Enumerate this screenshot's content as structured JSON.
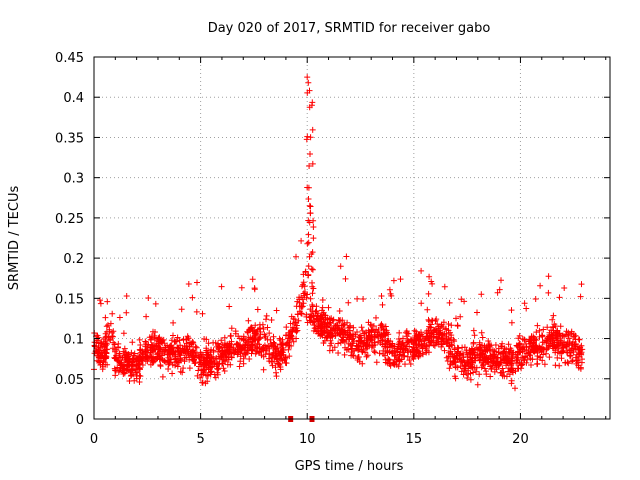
{
  "chart_data": {
    "type": "scatter",
    "title": "Day 020 of 2017, SRMTID for receiver gabo",
    "xlabel": "GPS time / hours",
    "ylabel": "SRMTID / TECUs",
    "xlim": [
      0,
      24.2
    ],
    "ylim": [
      0,
      0.45
    ],
    "xticks": [
      0,
      5,
      10,
      15,
      20
    ],
    "xtick_labels": [
      "0",
      "5",
      "10",
      "15",
      "20"
    ],
    "yticks": [
      0,
      0.05,
      0.1,
      0.15,
      0.2,
      0.25,
      0.3,
      0.35,
      0.4,
      0.45
    ],
    "ytick_labels": [
      "0",
      "0.05",
      "0.1",
      "0.15",
      "0.2",
      "0.25",
      "0.3",
      "0.35",
      "0.4",
      "0.45"
    ],
    "grid": true,
    "marker": "plus",
    "color": "#ff0000",
    "x_range_data": [
      0,
      22.9
    ],
    "baseline_markers_x": [
      9.2,
      10.2
    ],
    "series": [
      {
        "name": "SRMTID",
        "description": "Dense scatter of ~2300 samples; values plotted as typical level per hour",
        "x": [
          0,
          0.5,
          0.8,
          1,
          1.5,
          2,
          2.5,
          3,
          3.5,
          4,
          4.5,
          5,
          5.5,
          6,
          6.5,
          7,
          7.5,
          8,
          8.5,
          9,
          9.5,
          9.9,
          10,
          10.1,
          10.3,
          10.6,
          11,
          11.5,
          12,
          12.5,
          13,
          13.5,
          14,
          14.5,
          15,
          15.5,
          16,
          16.5,
          17,
          17.5,
          18,
          18.5,
          19,
          19.5,
          20,
          20.5,
          21,
          21.5,
          22,
          22.5,
          22.9
        ],
        "y": [
          0.09,
          0.08,
          0.12,
          0.07,
          0.07,
          0.07,
          0.08,
          0.09,
          0.08,
          0.08,
          0.09,
          0.07,
          0.07,
          0.08,
          0.09,
          0.09,
          0.1,
          0.09,
          0.08,
          0.09,
          0.12,
          0.17,
          0.2,
          0.16,
          0.13,
          0.12,
          0.11,
          0.11,
          0.1,
          0.09,
          0.1,
          0.1,
          0.08,
          0.09,
          0.09,
          0.1,
          0.11,
          0.1,
          0.07,
          0.07,
          0.08,
          0.08,
          0.07,
          0.07,
          0.08,
          0.09,
          0.09,
          0.1,
          0.09,
          0.09,
          0.08
        ],
        "peak": {
          "x": 10.0,
          "y": 0.425
        }
      }
    ]
  }
}
